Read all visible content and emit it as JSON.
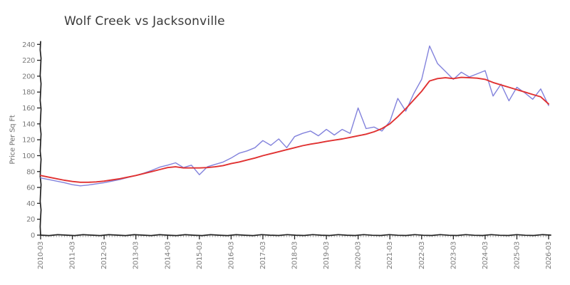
{
  "chart_data": {
    "type": "line",
    "title": "Wolf Creek vs Jacksonville",
    "xlabel": "",
    "ylabel": "Price Per Sq Ft",
    "ylim": [
      0,
      240
    ],
    "y_ticks": [
      0,
      20,
      40,
      60,
      80,
      100,
      120,
      140,
      160,
      180,
      200,
      220,
      240
    ],
    "x_tick_labels": [
      "2010-03",
      "2011-03",
      "2012-03",
      "2013-03",
      "2014-03",
      "2015-03",
      "2016-03",
      "2017-03",
      "2018-03",
      "2019-03",
      "2020-03",
      "2021-03",
      "2022-03",
      "2023-03",
      "2024-03",
      "2025-03",
      "2026-03"
    ],
    "x": [
      "2010-03",
      "2010-06",
      "2010-09",
      "2010-12",
      "2011-03",
      "2011-06",
      "2011-09",
      "2011-12",
      "2012-03",
      "2012-06",
      "2012-09",
      "2012-12",
      "2013-03",
      "2013-06",
      "2013-09",
      "2013-12",
      "2014-03",
      "2014-06",
      "2014-09",
      "2014-12",
      "2015-03",
      "2015-06",
      "2015-09",
      "2015-12",
      "2016-03",
      "2016-06",
      "2016-09",
      "2016-12",
      "2017-03",
      "2017-06",
      "2017-09",
      "2017-12",
      "2018-03",
      "2018-06",
      "2018-09",
      "2018-12",
      "2019-03",
      "2019-06",
      "2019-09",
      "2019-12",
      "2020-03",
      "2020-06",
      "2020-09",
      "2020-12",
      "2021-03",
      "2021-06",
      "2021-09",
      "2021-12",
      "2022-03",
      "2022-06",
      "2022-09",
      "2022-12",
      "2023-03",
      "2023-06",
      "2023-09",
      "2023-12",
      "2024-03",
      "2024-06",
      "2024-09",
      "2024-12",
      "2025-03",
      "2025-06",
      "2025-09",
      "2025-12",
      "2026-03"
    ],
    "series": [
      {
        "name": "Wolf Creek",
        "color": "#8282dc",
        "values": [
          72,
          70,
          68,
          66,
          63.5,
          62,
          63,
          64.5,
          66,
          68,
          70,
          72.5,
          75,
          78,
          81.5,
          85.5,
          88,
          91,
          85,
          88,
          76,
          86,
          89,
          92,
          97,
          103,
          106,
          110,
          119,
          113,
          121,
          110,
          124,
          128,
          131,
          125,
          133,
          126,
          133,
          128,
          160,
          134,
          136,
          131,
          143,
          172,
          156,
          178,
          196,
          238,
          216,
          206,
          196,
          205,
          199,
          203,
          207,
          175,
          190,
          169,
          186,
          179,
          171,
          184,
          163
        ]
      },
      {
        "name": "Jacksonville",
        "color": "#e03131",
        "values": [
          75,
          73,
          71,
          69,
          67.5,
          66.5,
          66.5,
          67,
          68,
          69.5,
          71,
          73,
          75,
          77.5,
          80,
          82.5,
          85,
          86,
          84.5,
          84.5,
          84.5,
          85,
          86,
          87.5,
          90,
          92,
          94.5,
          97,
          100,
          102.5,
          105,
          107.5,
          110,
          112.5,
          114.5,
          116,
          118,
          119.5,
          121,
          123,
          125,
          127,
          130,
          134,
          140,
          149,
          159,
          170,
          181,
          194,
          197,
          198,
          197,
          198.5,
          198,
          197.5,
          196,
          192,
          189,
          186,
          183,
          180,
          177,
          174,
          165
        ]
      }
    ],
    "legend": "none",
    "grid": "off",
    "axis_color": "#222222",
    "tick_label_color": "#7b7b7b",
    "minor_tick_color": "#aaaaaa"
  }
}
